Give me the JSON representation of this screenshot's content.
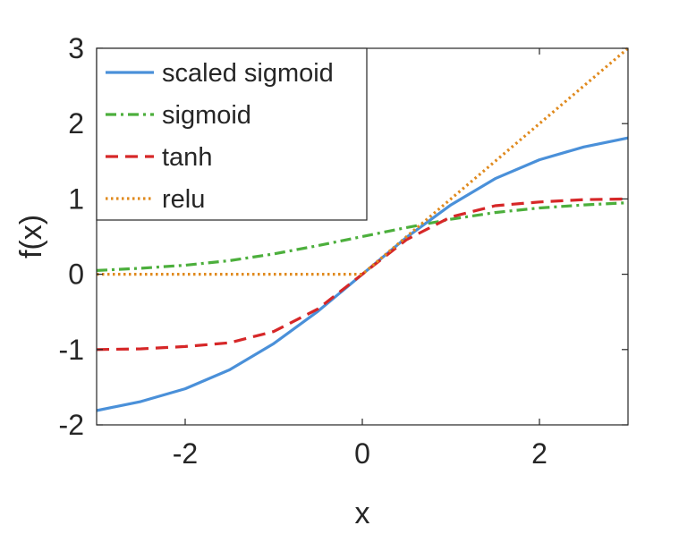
{
  "chart_data": {
    "type": "line",
    "title": "",
    "xlabel": "x",
    "ylabel": "f(x)",
    "xlim": [
      -3,
      3
    ],
    "ylim": [
      -2,
      3
    ],
    "xticks": [
      -2,
      0,
      2
    ],
    "xtick_labels": [
      "-2",
      "0",
      "2"
    ],
    "yticks": [
      -2,
      -1,
      0,
      1,
      2,
      3
    ],
    "ytick_labels": [
      "-2",
      "-1",
      "0",
      "1",
      "2",
      "3"
    ],
    "grid": false,
    "legend_position": "top-left",
    "x": [
      -3,
      -2.5,
      -2,
      -1.5,
      -1,
      -0.5,
      0,
      0.5,
      1,
      1.5,
      2,
      2.5,
      3
    ],
    "series": [
      {
        "name": "scaled sigmoid",
        "color": "#4a90d9",
        "style": "solid",
        "values": [
          -1.81,
          -1.69,
          -1.52,
          -1.27,
          -0.92,
          -0.49,
          0,
          0.49,
          0.92,
          1.27,
          1.52,
          1.69,
          1.81
        ]
      },
      {
        "name": "sigmoid",
        "color": "#4caf3c",
        "style": "dashdot",
        "values": [
          0.05,
          0.08,
          0.12,
          0.18,
          0.27,
          0.38,
          0.5,
          0.62,
          0.73,
          0.82,
          0.88,
          0.92,
          0.95
        ]
      },
      {
        "name": "tanh",
        "color": "#d62728",
        "style": "dashed",
        "values": [
          -1.0,
          -0.99,
          -0.96,
          -0.91,
          -0.76,
          -0.46,
          0,
          0.46,
          0.76,
          0.91,
          0.96,
          0.99,
          1.0
        ]
      },
      {
        "name": "relu",
        "color": "#e08a1e",
        "style": "dotted",
        "values": [
          0,
          0,
          0,
          0,
          0,
          0,
          0,
          0.5,
          1.0,
          1.5,
          2.0,
          2.5,
          3.0
        ]
      }
    ]
  }
}
